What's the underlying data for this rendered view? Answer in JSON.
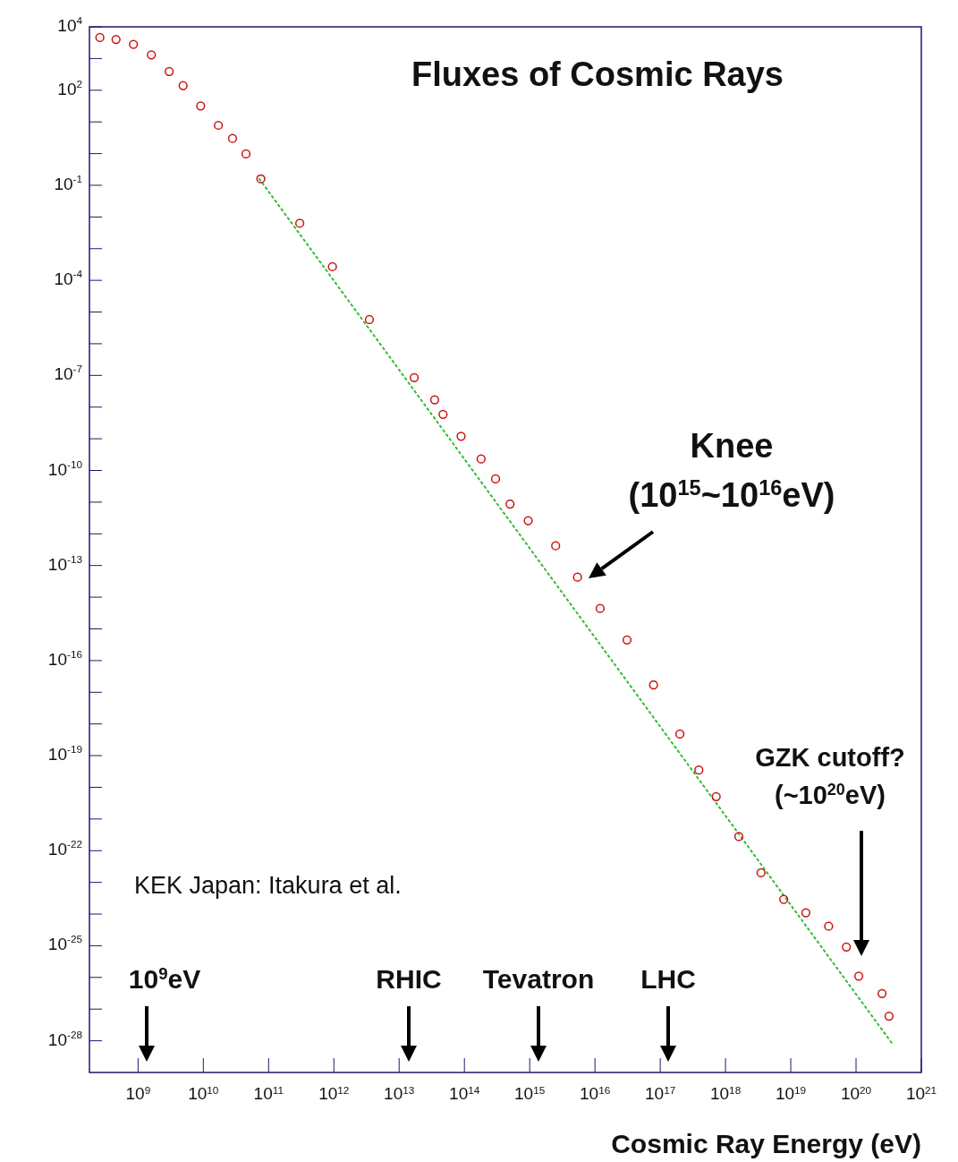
{
  "chart_data": {
    "type": "scatter",
    "title": "Fluxes of Cosmic Rays",
    "xlabel": "Cosmic Ray Energy (eV)",
    "log": "xy",
    "xlim": [
      180000000.0,
      1e+21
    ],
    "ylim": [
      1e-29,
      10000.0
    ],
    "xticks": [
      {
        "value": 1000000000.0,
        "label": "10$^{9}$"
      },
      {
        "value": 10000000000.0,
        "label": "10$^{10}$"
      },
      {
        "value": 100000000000.0,
        "label": "10$^{11}$"
      },
      {
        "value": 1000000000000.0,
        "label": "10$^{12}$"
      },
      {
        "value": 10000000000000.0,
        "label": "10$^{13}$"
      },
      {
        "value": 100000000000000.0,
        "label": "10$^{14}$"
      },
      {
        "value": 1000000000000000.0,
        "label": "10$^{15}$"
      },
      {
        "value": 1e+16,
        "label": "10$^{16}$"
      },
      {
        "value": 1e+17,
        "label": "10$^{17}$"
      },
      {
        "value": 1e+18,
        "label": "10$^{18}$"
      },
      {
        "value": 1e+19,
        "label": "10$^{19}$"
      },
      {
        "value": 1e+20,
        "label": "10$^{20}$"
      },
      {
        "value": 1e+21,
        "label": "10$^{21}$"
      }
    ],
    "yticks": [
      {
        "value": 10000.0,
        "label": "10$^{4}$"
      },
      {
        "value": 1000.0,
        "label": null
      },
      {
        "value": 100.0,
        "label": "10$^{2}$"
      },
      {
        "value": 10.0,
        "label": null
      },
      {
        "value": 1,
        "label": null
      },
      {
        "value": 0.1,
        "label": "10$^{-1}$"
      },
      {
        "value": 0.01,
        "label": null
      },
      {
        "value": 0.001,
        "label": null
      },
      {
        "value": 0.0001,
        "label": "10$^{-4}$"
      },
      {
        "value": 1e-05,
        "label": null
      },
      {
        "value": 1e-06,
        "label": null
      },
      {
        "value": 1e-07,
        "label": "10$^{-7}$"
      },
      {
        "value": 1e-08,
        "label": null
      },
      {
        "value": 1e-09,
        "label": null
      },
      {
        "value": 1e-10,
        "label": "10$^{-10}$"
      },
      {
        "value": 1e-11,
        "label": null
      },
      {
        "value": 1e-12,
        "label": null
      },
      {
        "value": 1e-13,
        "label": "10$^{-13}$"
      },
      {
        "value": 1e-14,
        "label": null
      },
      {
        "value": 1e-15,
        "label": null
      },
      {
        "value": 1e-16,
        "label": "10$^{-16}$"
      },
      {
        "value": 1e-17,
        "label": null
      },
      {
        "value": 1e-18,
        "label": null
      },
      {
        "value": 1e-19,
        "label": "10$^{-19}$"
      },
      {
        "value": 1e-20,
        "label": null
      },
      {
        "value": 1e-21,
        "label": null
      },
      {
        "value": 1e-22,
        "label": "10$^{-22}$"
      },
      {
        "value": 1e-23,
        "label": null
      },
      {
        "value": 1e-24,
        "label": null
      },
      {
        "value": 1e-25,
        "label": "10$^{-25}$"
      },
      {
        "value": 1e-26,
        "label": null
      },
      {
        "value": 1e-27,
        "label": null
      },
      {
        "value": 1e-28,
        "label": "10$^{-28}$"
      }
    ],
    "series": [
      {
        "type": "line",
        "color": "#33bb33",
        "line_style": "dotted",
        "x": [
          72000000000.0,
          3.5e+20
        ],
        "values": [
          0.16,
          8.7e-29
        ]
      },
      {
        "color": "#cc1111",
        "marker": "circle",
        "x": [
          260000000.0,
          460000000.0,
          850000000.0,
          1600000000.0,
          3000000000.0,
          4900000000.0,
          9100000000.0,
          17000000000.0,
          28000000000.0,
          45000000000.0,
          76000000000.0,
          300000000000.0,
          950000000000.0,
          3500000000000.0,
          17000000000000.0,
          35000000000000.0,
          47000000000000.0,
          89000000000000.0,
          180000000000000.0,
          300000000000000.0,
          500000000000000.0,
          950000000000000.0,
          2500000000000000.0,
          5400000000000000.0,
          1.2e+16,
          3.1e+16,
          7.9e+16,
          2e+17,
          3.9e+17,
          7.2e+17,
          1.6e+18,
          3.5e+18,
          7.8e+18,
          1.7e+19,
          3.8e+19,
          7.1e+19,
          1.1e+20,
          2.5e+20,
          3.2e+20
        ],
        "values": [
          4600,
          4000,
          2800,
          1300,
          390,
          140,
          32,
          7.8,
          3.0,
          0.98,
          0.16,
          0.0063,
          0.00027,
          5.8e-06,
          8.5e-08,
          1.7e-08,
          5.9e-09,
          1.2e-09,
          2.3e-10,
          5.4e-11,
          8.7e-12,
          2.6e-12,
          4.2e-13,
          4.3e-14,
          4.4e-15,
          4.5e-16,
          1.7e-17,
          4.8e-19,
          3.5e-20,
          5.1e-21,
          2.8e-22,
          2e-23,
          2.9e-24,
          1.1e-24,
          4.1e-25,
          9.1e-26,
          1.1e-26,
          3.1e-27,
          6e-28
        ]
      }
    ],
    "annotations": [
      "Knee\n(10$^{15}$~10$^{16}$eV)",
      "GZK cutoff?\n(~10$^{20}$eV)",
      "10$^{9}$eV",
      "RHIC",
      "Tevatron",
      "LHC",
      "KEK Japan: Itakura et al."
    ]
  }
}
